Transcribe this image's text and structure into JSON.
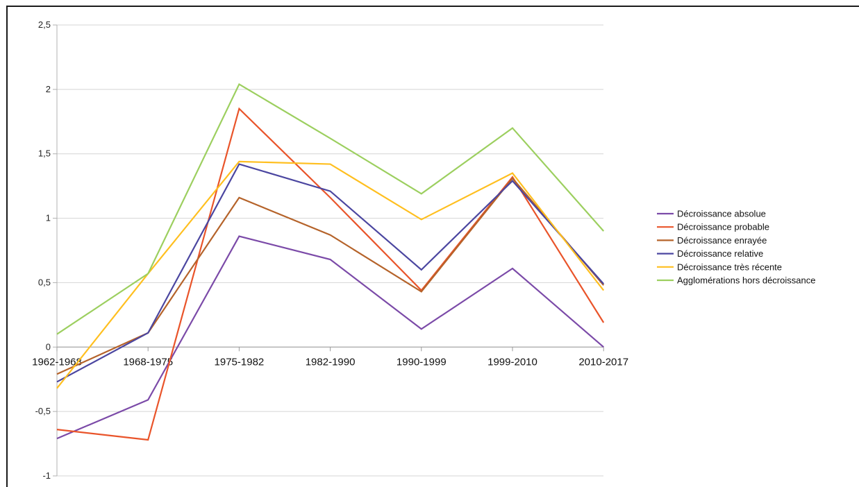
{
  "chart_data": {
    "type": "line",
    "categories": [
      "1962-1968",
      "1968-1975",
      "1975-1982",
      "1982-1990",
      "1990-1999",
      "1999-2010",
      "2010-2017"
    ],
    "ylim": [
      -1,
      2.5
    ],
    "yticks": [
      -1,
      -0.5,
      0,
      0.5,
      1,
      1.5,
      2,
      2.5
    ],
    "ytick_labels": [
      "-1",
      "-0,5",
      "0",
      "0,5",
      "1",
      "1,5",
      "2",
      "2,5"
    ],
    "grid": true,
    "legend": "right",
    "series": [
      {
        "name": "Décroissance absolue",
        "color": "#7b4aa8",
        "values": [
          -0.71,
          -0.41,
          0.86,
          0.68,
          0.14,
          0.61,
          0.0
        ]
      },
      {
        "name": "Décroissance probable",
        "color": "#e9542a",
        "values": [
          -0.64,
          -0.72,
          1.85,
          1.16,
          0.44,
          1.32,
          0.19
        ]
      },
      {
        "name": "Décroissance enrayée",
        "color": "#b5632a",
        "values": [
          -0.21,
          0.11,
          1.16,
          0.87,
          0.43,
          1.31,
          0.48
        ]
      },
      {
        "name": "Décroissance relative",
        "color": "#4b46a0",
        "values": [
          -0.27,
          0.11,
          1.42,
          1.21,
          0.6,
          1.29,
          0.49
        ]
      },
      {
        "name": "Décroissance très récente",
        "color": "#ffbf1f",
        "values": [
          -0.32,
          0.57,
          1.44,
          1.42,
          0.99,
          1.35,
          0.44
        ]
      },
      {
        "name": "Agglomérations hors décroissance",
        "color": "#9ccf5f",
        "values": [
          0.1,
          0.57,
          2.04,
          1.62,
          1.19,
          1.7,
          0.9
        ]
      }
    ]
  }
}
